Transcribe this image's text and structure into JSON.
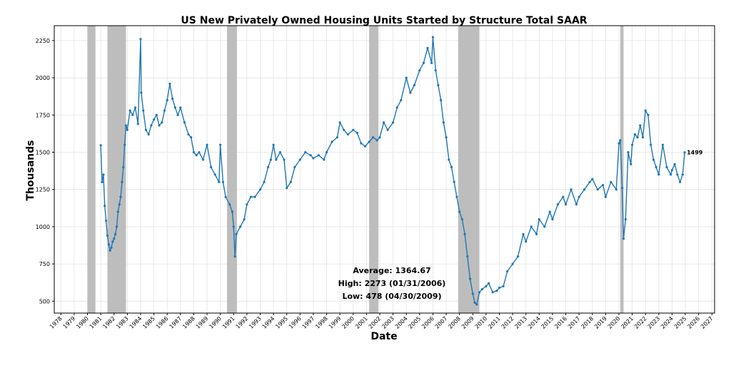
{
  "chart_data": {
    "type": "line",
    "title": "US New Privately Owned Housing Units Started by Structure Total SAAR",
    "xlabel": "Date",
    "ylabel": "Thousands",
    "xlim": [
      1977.5,
      2027.2
    ],
    "ylim": [
      420,
      2350
    ],
    "x_ticks": [
      1978,
      1979,
      1980,
      1981,
      1982,
      1983,
      1984,
      1985,
      1986,
      1987,
      1988,
      1989,
      1990,
      1991,
      1992,
      1993,
      1994,
      1995,
      1996,
      1997,
      1998,
      1999,
      2000,
      2001,
      2002,
      2003,
      2004,
      2005,
      2006,
      2007,
      2008,
      2009,
      2010,
      2011,
      2012,
      2013,
      2014,
      2015,
      2016,
      2017,
      2018,
      2019,
      2020,
      2021,
      2022,
      2023,
      2024,
      2025,
      2026,
      2027
    ],
    "y_ticks": [
      500,
      750,
      1000,
      1250,
      1500,
      1750,
      2000,
      2250
    ],
    "grid": true,
    "line_color": "#1f77b4",
    "recession_color": "#bdbdbd",
    "recessions": [
      [
        1980.0,
        1980.6
      ],
      [
        1981.5,
        1982.9
      ],
      [
        1990.5,
        1991.25
      ],
      [
        2001.2,
        2001.9
      ],
      [
        2007.9,
        2009.5
      ],
      [
        2020.1,
        2020.35
      ]
    ],
    "series": [
      {
        "x": [
          1981.0,
          1981.1,
          1981.2,
          1981.3,
          1981.4,
          1981.5,
          1981.6,
          1981.7,
          1981.8,
          1981.9,
          1982.0,
          1982.1,
          1982.2,
          1982.3,
          1982.4,
          1982.5,
          1982.6,
          1982.7,
          1982.8,
          1982.9,
          1983.0,
          1983.2,
          1983.4,
          1983.6,
          1983.8,
          1984.0,
          1984.05,
          1984.2,
          1984.4,
          1984.6,
          1984.8,
          1985.0,
          1985.2,
          1985.4,
          1985.6,
          1985.8,
          1986.0,
          1986.2,
          1986.4,
          1986.6,
          1986.8,
          1987.0,
          1987.3,
          1987.6,
          1987.8,
          1988.0,
          1988.2,
          1988.4,
          1988.7,
          1989.0,
          1989.3,
          1989.6,
          1989.9,
          1990.0,
          1990.2,
          1990.4,
          1990.7,
          1990.9,
          1991.0,
          1991.1,
          1991.2,
          1991.5,
          1991.8,
          1992.0,
          1992.3,
          1992.6,
          1993.0,
          1993.3,
          1993.6,
          1993.8,
          1994.0,
          1994.2,
          1994.5,
          1994.8,
          1995.0,
          1995.3,
          1995.6,
          1996.0,
          1996.4,
          1996.8,
          1997.0,
          1997.4,
          1997.8,
          1998.0,
          1998.4,
          1998.8,
          1999.0,
          1999.3,
          1999.6,
          2000.0,
          2000.3,
          2000.6,
          2000.9,
          2001.2,
          2001.5,
          2001.8,
          2002.0,
          2002.3,
          2002.6,
          2003.0,
          2003.3,
          2003.6,
          2004.0,
          2004.3,
          2004.6,
          2005.0,
          2005.3,
          2005.6,
          2005.9,
          2006.0,
          2006.2,
          2006.4,
          2006.6,
          2006.8,
          2007.0,
          2007.2,
          2007.4,
          2007.6,
          2007.8,
          2008.0,
          2008.2,
          2008.4,
          2008.6,
          2008.8,
          2009.0,
          2009.15,
          2009.3,
          2009.5,
          2009.7,
          2010.0,
          2010.2,
          2010.5,
          2010.8,
          2011.0,
          2011.3,
          2011.6,
          2012.0,
          2012.4,
          2012.8,
          2013.0,
          2013.4,
          2013.8,
          2014.0,
          2014.4,
          2014.8,
          2015.0,
          2015.4,
          2015.8,
          2016.0,
          2016.4,
          2016.8,
          2017.0,
          2017.4,
          2017.8,
          2018.0,
          2018.4,
          2018.8,
          2019.0,
          2019.4,
          2019.8,
          2020.0,
          2020.1,
          2020.25,
          2020.35,
          2020.5,
          2020.7,
          2020.9,
          2021.0,
          2021.2,
          2021.4,
          2021.6,
          2021.8,
          2022.0,
          2022.2,
          2022.4,
          2022.6,
          2022.8,
          2023.0,
          2023.3,
          2023.6,
          2023.9,
          2024.0,
          2024.2,
          2024.4,
          2024.6,
          2024.8,
          2024.95
        ],
        "y": [
          1547,
          1300,
          1350,
          1140,
          1040,
          940,
          880,
          840,
          860,
          900,
          920,
          950,
          1000,
          1100,
          1150,
          1200,
          1300,
          1400,
          1550,
          1680,
          1650,
          1780,
          1750,
          1800,
          1690,
          2260,
          1900,
          1780,
          1650,
          1620,
          1680,
          1720,
          1750,
          1680,
          1700,
          1780,
          1850,
          1960,
          1860,
          1800,
          1750,
          1800,
          1700,
          1620,
          1600,
          1500,
          1480,
          1500,
          1450,
          1550,
          1400,
          1350,
          1300,
          1550,
          1300,
          1200,
          1150,
          1100,
          1000,
          800,
          950,
          1000,
          1050,
          1150,
          1200,
          1200,
          1250,
          1300,
          1400,
          1450,
          1550,
          1450,
          1500,
          1450,
          1260,
          1300,
          1400,
          1450,
          1500,
          1480,
          1460,
          1480,
          1450,
          1500,
          1570,
          1600,
          1700,
          1650,
          1620,
          1650,
          1630,
          1560,
          1540,
          1570,
          1600,
          1580,
          1600,
          1700,
          1650,
          1700,
          1800,
          1850,
          2000,
          1900,
          1950,
          2050,
          2100,
          2200,
          2100,
          2273,
          2050,
          1950,
          1850,
          1700,
          1600,
          1450,
          1400,
          1300,
          1200,
          1100,
          1050,
          950,
          800,
          650,
          550,
          490,
          478,
          560,
          580,
          600,
          620,
          560,
          570,
          590,
          600,
          700,
          750,
          800,
          950,
          900,
          1000,
          950,
          1050,
          1000,
          1100,
          1050,
          1150,
          1200,
          1150,
          1250,
          1150,
          1200,
          1250,
          1300,
          1320,
          1250,
          1280,
          1200,
          1300,
          1250,
          1560,
          1580,
          1260,
          920,
          1050,
          1500,
          1420,
          1550,
          1620,
          1600,
          1680,
          1600,
          1780,
          1750,
          1550,
          1450,
          1400,
          1350,
          1550,
          1400,
          1350,
          1380,
          1420,
          1350,
          1300,
          1350,
          1499
        ]
      }
    ],
    "annotations": {
      "average": "Average: 1364.67",
      "high": "High: 2273 (01/31/2006)",
      "low": "Low: 478 (04/30/2009)",
      "last_value": "1499"
    }
  }
}
